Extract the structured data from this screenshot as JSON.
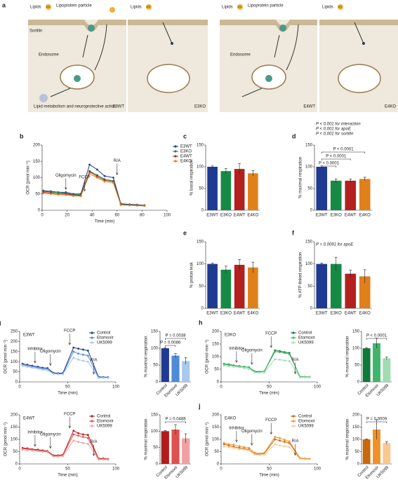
{
  "diagram": {
    "label": "a",
    "panels": [
      {
        "genotype": "E3WT",
        "lipids": "Lipids",
        "apoe": "E3",
        "particle": "Lipoprotein particle",
        "receptor": "Sortilin",
        "endosome": "Endosome",
        "outcome": "Lipid metabolism and neuroprotective action"
      },
      {
        "genotype": "E3KO",
        "lipids": "Lipids",
        "apoe": "E3"
      },
      {
        "genotype": "E4WT",
        "lipids": "Lipids",
        "apoe": "E4",
        "particle": "Lipoprotein particle",
        "endosome": "Endosome"
      },
      {
        "genotype": "E4KO",
        "lipids": "Lipids",
        "apoe": "E4"
      }
    ]
  },
  "chart_data": [
    {
      "type": "line",
      "label": "b",
      "xlabel": "Time (min)",
      "ylabel": "OCR (pmol min⁻¹)",
      "xlim": [
        0,
        100
      ],
      "xticks": [
        0,
        20,
        40,
        60,
        80,
        100
      ],
      "ylim": [
        0,
        200
      ],
      "yticks": [
        0,
        50,
        100,
        150,
        200
      ],
      "legend": "outside right",
      "annotations": [
        {
          "text": "Oligomycin",
          "x": 19
        },
        {
          "text": "FCCP",
          "x": 34
        },
        {
          "text": "R/A",
          "x": 60
        }
      ],
      "x": [
        1,
        7,
        13,
        19,
        25,
        31,
        38,
        44,
        50,
        57,
        63,
        70,
        76,
        82
      ],
      "series": [
        {
          "name": "E3WT",
          "color": "#1f3a93",
          "values": [
            60,
            58,
            55,
            55,
            50,
            50,
            140,
            125,
            105,
            100,
            20,
            18,
            17,
            15
          ]
        },
        {
          "name": "E3KO",
          "color": "#168a45",
          "values": [
            58,
            56,
            54,
            52,
            48,
            47,
            120,
            108,
            95,
            90,
            18,
            17,
            16,
            15
          ]
        },
        {
          "name": "E4WT",
          "color": "#b32020",
          "values": [
            55,
            53,
            50,
            50,
            46,
            45,
            118,
            104,
            92,
            88,
            17,
            16,
            15,
            14
          ]
        },
        {
          "name": "E4KO",
          "color": "#e0801a",
          "values": [
            52,
            50,
            48,
            47,
            44,
            43,
            112,
            100,
            88,
            84,
            16,
            15,
            14,
            13
          ]
        }
      ]
    },
    {
      "type": "bar",
      "label": "c",
      "ylabel": "% basal respiration",
      "categories": [
        "E3WT",
        "E3KO",
        "E4WT",
        "E4KO"
      ],
      "values": [
        100,
        90,
        95,
        85
      ],
      "errors": [
        2,
        6,
        12,
        6
      ],
      "colors": [
        "#1f3a93",
        "#168a45",
        "#b32020",
        "#e0801a"
      ],
      "ylim": [
        0,
        150
      ],
      "yticks": [
        0,
        50,
        100,
        150
      ]
    },
    {
      "type": "bar",
      "label": "d",
      "ylabel": "% maximal respiration",
      "categories": [
        "E3WT",
        "E3KO",
        "E4WT",
        "E4KO"
      ],
      "values": [
        100,
        68,
        68,
        72
      ],
      "errors": [
        2,
        4,
        4,
        4
      ],
      "colors": [
        "#1f3a93",
        "#168a45",
        "#b32020",
        "#e0801a"
      ],
      "ylim": [
        0,
        150
      ],
      "yticks": [
        0,
        50,
        100,
        150
      ],
      "notes": [
        "P < 0.001 for interaction",
        "P < 0.001 for apoE",
        "P < 0.001 for sortilin"
      ],
      "comparisons": [
        {
          "text": "P < 0.0001",
          "between": [
            0,
            1
          ]
        },
        {
          "text": "P < 0.0001",
          "between": [
            0,
            2
          ]
        },
        {
          "text": "P < 0.0001",
          "between": [
            0,
            3
          ]
        }
      ]
    },
    {
      "type": "bar",
      "label": "e",
      "ylabel": "% proton leak",
      "categories": [
        "E3WT",
        "E3KO",
        "E4WT",
        "E4KO"
      ],
      "values": [
        100,
        87,
        98,
        92
      ],
      "errors": [
        2,
        8,
        12,
        12
      ],
      "colors": [
        "#1f3a93",
        "#168a45",
        "#b32020",
        "#e0801a"
      ],
      "ylim": [
        0,
        150
      ],
      "yticks": [
        0,
        50,
        100,
        150
      ]
    },
    {
      "type": "bar",
      "label": "f",
      "ylabel": "% ATP-linked respiration",
      "categories": [
        "E3WT",
        "E3KO",
        "E4WT",
        "E4KO"
      ],
      "values": [
        100,
        100,
        78,
        72
      ],
      "errors": [
        2,
        15,
        8,
        15
      ],
      "colors": [
        "#1f3a93",
        "#168a45",
        "#b32020",
        "#e0801a"
      ],
      "ylim": [
        0,
        150
      ],
      "yticks": [
        0,
        50,
        100,
        150
      ],
      "notes": [
        "P = 0.0091 for apoE"
      ]
    },
    {
      "type": "line",
      "label": "g",
      "panel_title": "E3WT",
      "xlabel": "Time (min)",
      "ylabel": "OCR (pmol min⁻¹)",
      "xlim": [
        0,
        100
      ],
      "xticks": [
        0,
        50,
        100
      ],
      "ylim": [
        0,
        250
      ],
      "yticks": [
        0,
        50,
        100,
        150,
        200,
        250
      ],
      "legend": "upper right",
      "annotations": [
        {
          "text": "Inhibitor",
          "x": 16
        },
        {
          "text": "Oligomycin",
          "x": 32
        },
        {
          "text": "FCCP",
          "x": 52
        },
        {
          "text": "R/A",
          "x": 77
        }
      ],
      "x": [
        3,
        8,
        13,
        19,
        24,
        29,
        35,
        40,
        45,
        56,
        61,
        66,
        71,
        82,
        87,
        92
      ],
      "series": [
        {
          "name": "Control",
          "color": "#1f3a93",
          "values": [
            90,
            85,
            80,
            75,
            70,
            68,
            45,
            43,
            44,
            170,
            165,
            160,
            155,
            25,
            24,
            23
          ]
        },
        {
          "name": "Etomoxir",
          "color": "#4f8bd6",
          "values": [
            85,
            80,
            75,
            70,
            65,
            62,
            42,
            40,
            40,
            150,
            140,
            135,
            130,
            22,
            22,
            21
          ]
        },
        {
          "name": "UK5099",
          "color": "#a8c8ec",
          "values": [
            80,
            75,
            70,
            65,
            60,
            58,
            40,
            38,
            38,
            120,
            110,
            105,
            100,
            20,
            20,
            20
          ]
        }
      ]
    },
    {
      "type": "bar",
      "ylabel": "% maximal respiration",
      "categories": [
        "Control",
        "Etomoxir",
        "UK5099"
      ],
      "values": [
        100,
        78,
        62
      ],
      "errors": [
        2,
        6,
        10
      ],
      "colors": [
        "#1f3a93",
        "#4f8bd6",
        "#a8c8ec"
      ],
      "ylim": [
        0,
        150
      ],
      "yticks": [
        0,
        50,
        100,
        150
      ],
      "xtick_rotation": 45,
      "comparisons": [
        {
          "text": "P = 0.0086",
          "between": [
            0,
            1
          ]
        },
        {
          "text": "P = 0.0038",
          "between": [
            0,
            2
          ]
        }
      ]
    },
    {
      "type": "line",
      "label": "h",
      "panel_title": "E3KO",
      "xlabel": "Time (min)",
      "ylabel": "OCR (pmol min⁻¹)",
      "xlim": [
        0,
        100
      ],
      "xticks": [
        0,
        50,
        100
      ],
      "ylim": [
        0,
        200
      ],
      "yticks": [
        0,
        50,
        100,
        150,
        200
      ],
      "legend": "upper right",
      "annotations": [
        {
          "text": "Inhibitor",
          "x": 16
        },
        {
          "text": "Oligomycin",
          "x": 32
        },
        {
          "text": "FCCP",
          "x": 52
        },
        {
          "text": "R/A",
          "x": 77
        }
      ],
      "x": [
        3,
        8,
        13,
        19,
        24,
        29,
        35,
        40,
        45,
        56,
        61,
        66,
        71,
        82,
        87,
        92
      ],
      "series": [
        {
          "name": "Control",
          "color": "#0e7a3a",
          "values": [
            70,
            68,
            65,
            62,
            60,
            58,
            40,
            40,
            42,
            125,
            122,
            118,
            115,
            20,
            20,
            19
          ]
        },
        {
          "name": "Etomoxir",
          "color": "#3fb56b",
          "values": [
            72,
            70,
            66,
            63,
            60,
            58,
            42,
            41,
            42,
            120,
            118,
            115,
            110,
            21,
            20,
            20
          ]
        },
        {
          "name": "UK5099",
          "color": "#9fdcb0",
          "values": [
            65,
            62,
            60,
            58,
            55,
            52,
            38,
            37,
            38,
            90,
            88,
            85,
            82,
            18,
            18,
            18
          ]
        }
      ]
    },
    {
      "type": "bar",
      "ylabel": "% maximal respiration",
      "categories": [
        "Control",
        "Etomoxir",
        "UK5099"
      ],
      "values": [
        100,
        115,
        70
      ],
      "errors": [
        2,
        15,
        4
      ],
      "colors": [
        "#0e7a3a",
        "#3fb56b",
        "#9fdcb0"
      ],
      "ylim": [
        0,
        150
      ],
      "yticks": [
        0,
        50,
        100,
        150
      ],
      "xtick_rotation": 45,
      "comparisons": [
        {
          "text": "P < 0.0001",
          "between": [
            0,
            2
          ]
        }
      ]
    },
    {
      "type": "line",
      "label": "i",
      "panel_title": "E4WT",
      "xlabel": "Time (min)",
      "ylabel": "OCR (pmol min⁻¹)",
      "xlim": [
        0,
        100
      ],
      "xticks": [
        0,
        50,
        100
      ],
      "ylim": [
        0,
        200
      ],
      "yticks": [
        0,
        50,
        100,
        150,
        200
      ],
      "legend": "upper right",
      "annotations": [
        {
          "text": "Inhibitor",
          "x": 16
        },
        {
          "text": "Oligomycin",
          "x": 32
        },
        {
          "text": "FCCP",
          "x": 52
        },
        {
          "text": "R/A",
          "x": 77
        }
      ],
      "x": [
        3,
        8,
        13,
        19,
        24,
        29,
        35,
        40,
        45,
        56,
        61,
        66,
        71,
        82,
        87,
        92
      ],
      "series": [
        {
          "name": "Control",
          "color": "#b31b1b",
          "values": [
            65,
            63,
            60,
            58,
            55,
            52,
            35,
            35,
            37,
            135,
            125,
            120,
            118,
            22,
            22,
            20
          ]
        },
        {
          "name": "Etomoxir",
          "color": "#e05050",
          "values": [
            62,
            60,
            58,
            55,
            52,
            50,
            33,
            33,
            35,
            120,
            115,
            110,
            105,
            20,
            20,
            19
          ]
        },
        {
          "name": "UK5099",
          "color": "#f0a0a0",
          "values": [
            58,
            56,
            54,
            52,
            50,
            48,
            30,
            30,
            32,
            95,
            90,
            85,
            82,
            18,
            18,
            17
          ]
        }
      ]
    },
    {
      "type": "bar",
      "ylabel": "% maximal respiration",
      "categories": [
        "Control",
        "Etomoxir",
        "UK5099"
      ],
      "values": [
        100,
        105,
        78
      ],
      "errors": [
        2,
        15,
        14
      ],
      "colors": [
        "#b31b1b",
        "#e05050",
        "#f0a0a0"
      ],
      "ylim": [
        0,
        150
      ],
      "yticks": [
        0,
        50,
        100,
        150
      ],
      "xtick_rotation": 45,
      "comparisons": [
        {
          "text": "P = 0.0488",
          "between": [
            0,
            2
          ]
        }
      ]
    },
    {
      "type": "line",
      "label": "j",
      "panel_title": "E4KO",
      "xlabel": "Time (min)",
      "ylabel": "OCR (pmol min⁻¹)",
      "xlim": [
        0,
        100
      ],
      "xticks": [
        0,
        50,
        100
      ],
      "ylim": [
        0,
        200
      ],
      "yticks": [
        0,
        50,
        100,
        150,
        200
      ],
      "legend": "upper right",
      "annotations": [
        {
          "text": "Inhibitor",
          "x": 16
        },
        {
          "text": "Oligomycin",
          "x": 32
        },
        {
          "text": "FCCP",
          "x": 52
        },
        {
          "text": "R/A",
          "x": 77
        }
      ],
      "x": [
        3,
        8,
        13,
        19,
        24,
        29,
        35,
        40,
        45,
        56,
        61,
        66,
        71,
        82,
        87,
        92
      ],
      "series": [
        {
          "name": "Control",
          "color": "#c8680a",
          "values": [
            80,
            75,
            70,
            65,
            62,
            58,
            40,
            40,
            42,
            100,
            95,
            90,
            85,
            22,
            21,
            20
          ]
        },
        {
          "name": "Etomoxir",
          "color": "#f0902b",
          "values": [
            85,
            80,
            78,
            72,
            68,
            65,
            45,
            42,
            45,
            110,
            105,
            98,
            92,
            24,
            22,
            21
          ]
        },
        {
          "name": "UK5099",
          "color": "#f8c890",
          "values": [
            70,
            68,
            65,
            60,
            58,
            55,
            38,
            36,
            38,
            80,
            75,
            72,
            68,
            20,
            19,
            18
          ]
        }
      ]
    },
    {
      "type": "bar",
      "ylabel": "% maximal respiration",
      "categories": [
        "Control",
        "Etomoxir",
        "UK5099"
      ],
      "values": [
        100,
        140,
        85
      ],
      "errors": [
        2,
        40,
        5
      ],
      "colors": [
        "#c8680a",
        "#f0902b",
        "#f8c890"
      ],
      "ylim": [
        0,
        200
      ],
      "yticks": [
        0,
        50,
        100,
        150,
        200
      ],
      "xtick_rotation": 45,
      "comparisons": [
        {
          "text": "P = 0.0009",
          "between": [
            0,
            2
          ]
        }
      ]
    }
  ]
}
